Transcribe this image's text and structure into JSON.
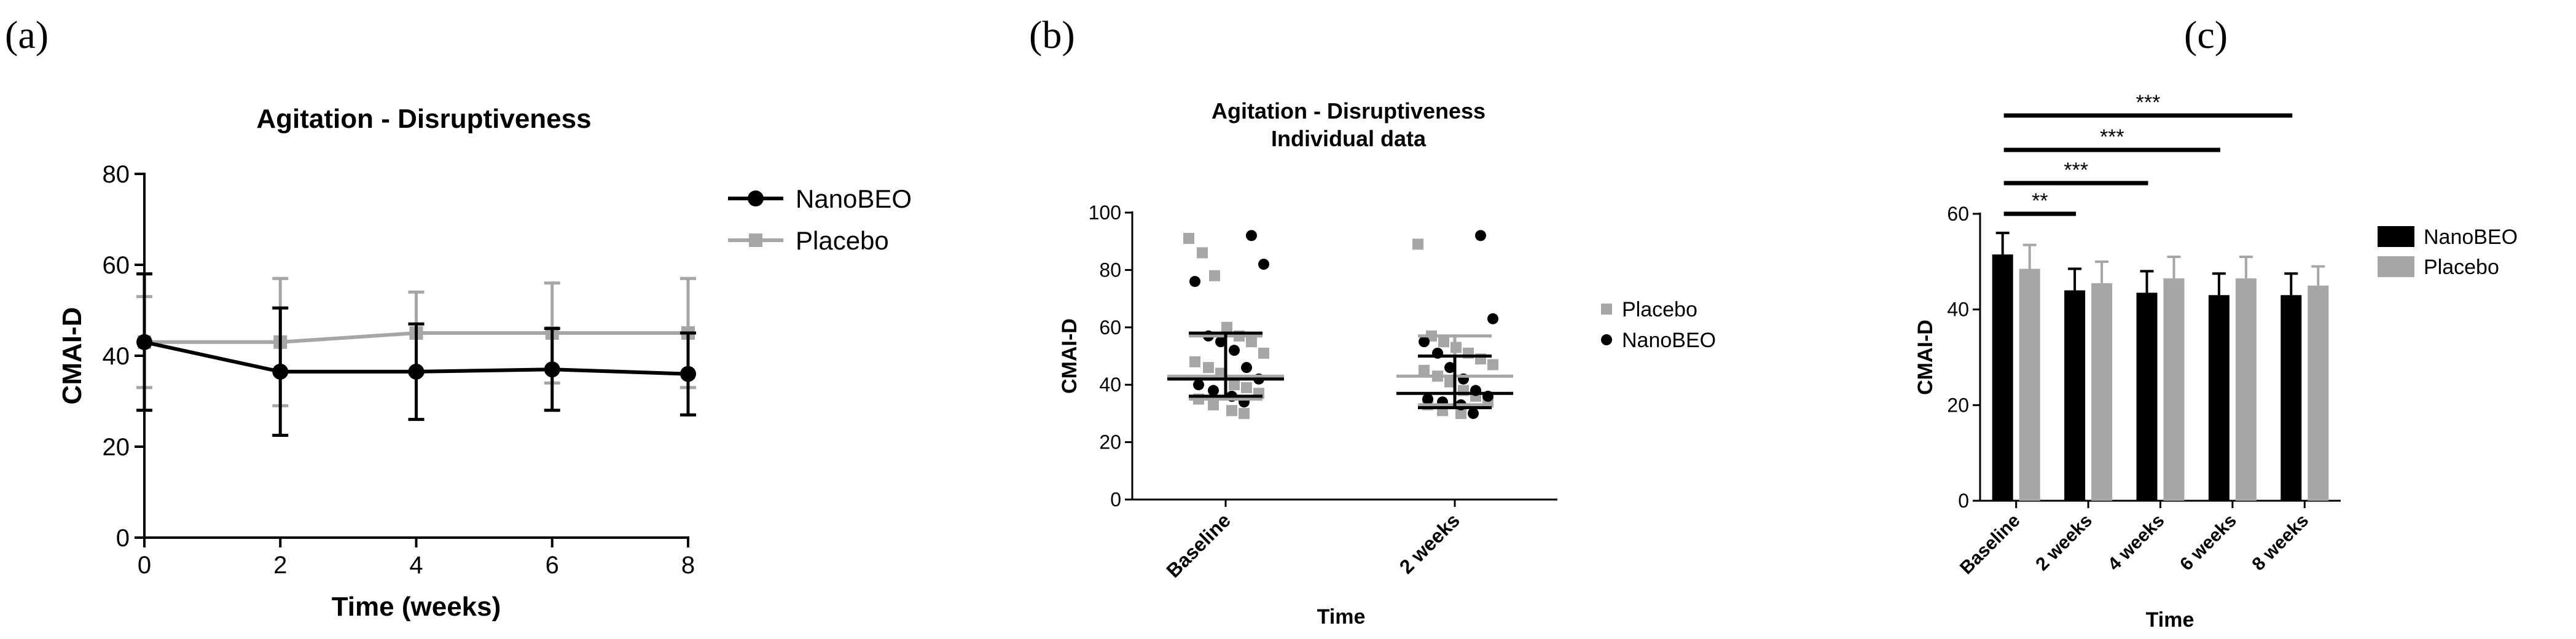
{
  "chart_data": [
    {
      "panel": "(a)",
      "type": "line",
      "title": "Agitation - Disruptiveness",
      "xlabel": "Time (weeks)",
      "ylabel": "CMAI-D",
      "x": [
        0,
        2,
        4,
        6,
        8
      ],
      "xticks": [
        "0",
        "2",
        "4",
        "6",
        "8"
      ],
      "yticks": [
        "0",
        "20",
        "40",
        "60",
        "80"
      ],
      "xlim": [
        0,
        8
      ],
      "ylim": [
        0,
        80
      ],
      "series": [
        {
          "name": "NanoBEO",
          "color": "#000000",
          "marker": "circle",
          "values": [
            43,
            36.5,
            36.5,
            37,
            36
          ],
          "err": [
            15,
            14,
            10.5,
            9,
            9
          ]
        },
        {
          "name": "Placebo",
          "color": "#a6a6a6",
          "marker": "square",
          "values": [
            43,
            43,
            45,
            45,
            45
          ],
          "err": [
            10,
            14,
            9,
            11,
            12
          ]
        }
      ],
      "legend": "right"
    },
    {
      "panel": "(b)",
      "type": "scatter",
      "title": "Agitation - Disruptiveness",
      "subtitle": "Individual data",
      "xlabel": "Time",
      "ylabel": "CMAI-D",
      "categories": [
        "Baseline",
        "2 weeks"
      ],
      "yticks": [
        "0",
        "20",
        "40",
        "60",
        "80",
        "100"
      ],
      "ylim": [
        0,
        100
      ],
      "series": [
        {
          "name": "Placebo",
          "color": "#a6a6a6",
          "marker": "square",
          "median": [
            43,
            43
          ],
          "iqr": [
            [
              35,
              57
            ],
            [
              33,
              57
            ]
          ],
          "points": [
            [
              91,
              86,
              78,
              60,
              57,
              55,
              51,
              48,
              46,
              44,
              40,
              39,
              37,
              35,
              33,
              31,
              30
            ],
            [
              89,
              57,
              55,
              53,
              51,
              49,
              47,
              45,
              43,
              41,
              38,
              36,
              34,
              33,
              31,
              30
            ]
          ]
        },
        {
          "name": "NanoBEO",
          "color": "#000000",
          "marker": "circle",
          "median": [
            42,
            37
          ],
          "iqr": [
            [
              36,
              58
            ],
            [
              32,
              50
            ]
          ],
          "points": [
            [
              92,
              82,
              76,
              57,
              55,
              52,
              46,
              42,
              40,
              38,
              36,
              34
            ],
            [
              92,
              63,
              55,
              51,
              46,
              42,
              38,
              36,
              35,
              34,
              33,
              30
            ]
          ]
        }
      ],
      "legend": "right"
    },
    {
      "panel": "(c)",
      "type": "bar",
      "xlabel": "Time",
      "ylabel": "CMAI-D",
      "categories": [
        "Baseline",
        "2 weeks",
        "4 weeks",
        "6 weeks",
        "8 weeks"
      ],
      "yticks": [
        "0",
        "20",
        "40",
        "60"
      ],
      "ylim": [
        0,
        60
      ],
      "series": [
        {
          "name": "NanoBEO",
          "color": "#000000",
          "values": [
            51.5,
            44,
            43.5,
            43,
            43
          ],
          "err": [
            4.5,
            4.5,
            4.5,
            4.5,
            4.5
          ]
        },
        {
          "name": "Placebo",
          "color": "#a6a6a6",
          "values": [
            48.5,
            45.5,
            46.5,
            46.5,
            45
          ],
          "err": [
            5,
            4.5,
            4.5,
            4.5,
            4
          ]
        }
      ],
      "significance": [
        {
          "from": "Baseline",
          "to": "2 weeks",
          "label": "**"
        },
        {
          "from": "Baseline",
          "to": "4 weeks",
          "label": "***"
        },
        {
          "from": "Baseline",
          "to": "6 weeks",
          "label": "***"
        },
        {
          "from": "Baseline",
          "to": "8 weeks",
          "label": "***"
        }
      ],
      "legend": "right"
    }
  ]
}
